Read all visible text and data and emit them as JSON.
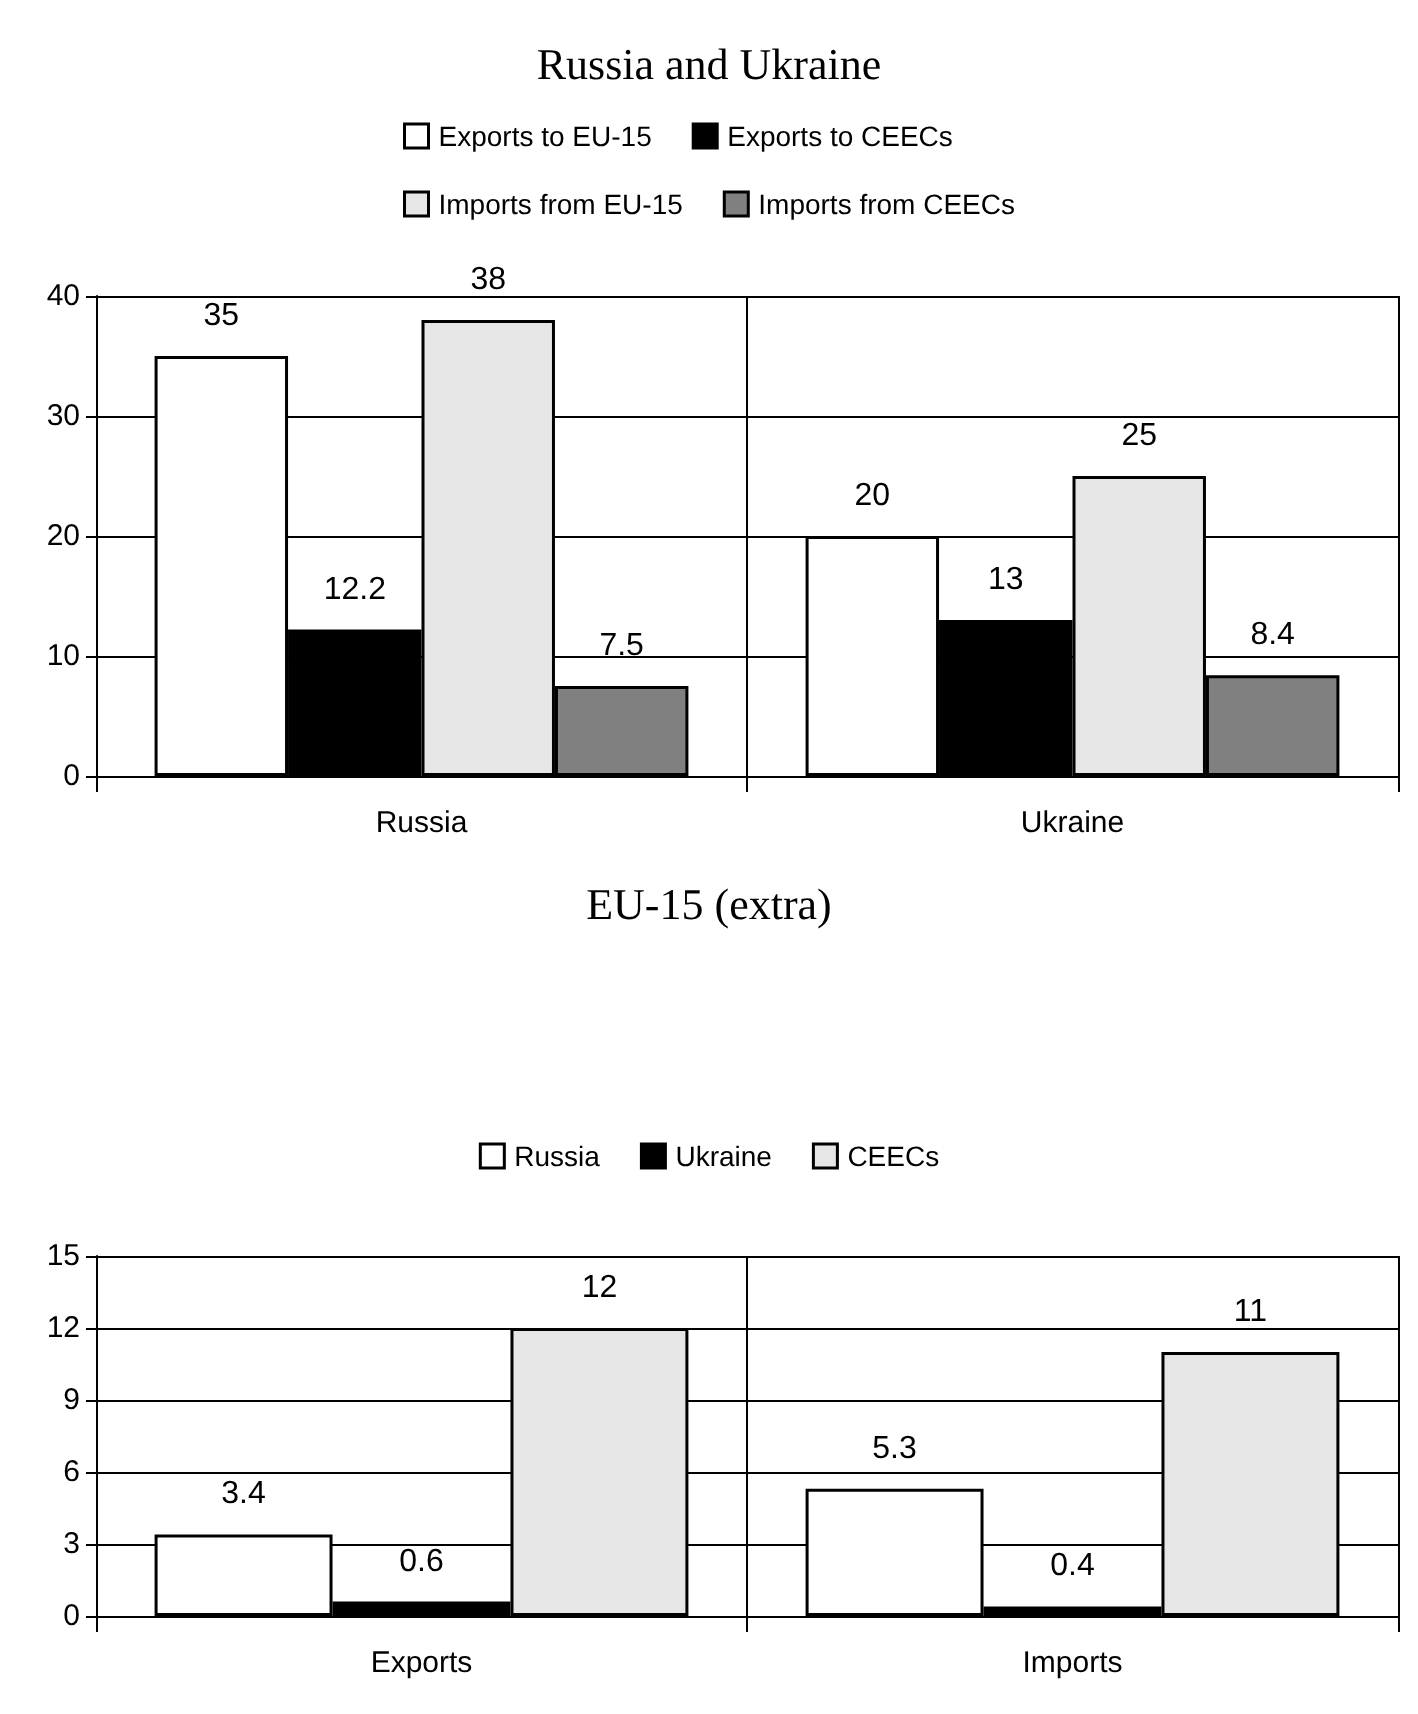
{
  "chart_data": [
    {
      "type": "bar",
      "title": "Russia and Ukraine",
      "categories": [
        "Russia",
        "Ukraine"
      ],
      "series": [
        {
          "name": "Exports to EU-15",
          "color": "#ffffff",
          "values": [
            35,
            20
          ]
        },
        {
          "name": "Exports to CEECs",
          "color": "#000000",
          "values": [
            12.2,
            13
          ]
        },
        {
          "name": "Imports from EU-15",
          "color": "#e6e6e6",
          "values": [
            38,
            25
          ]
        },
        {
          "name": "Imports from CEECs",
          "color": "#808080",
          "values": [
            7.5,
            8.4
          ]
        }
      ],
      "ylim": [
        0,
        40
      ],
      "yticks": [
        0,
        10,
        20,
        30,
        40
      ],
      "grid": true,
      "legend": "top",
      "data_labels": true
    },
    {
      "type": "bar",
      "title": "EU-15 (extra)",
      "categories": [
        "Exports",
        "Imports"
      ],
      "series": [
        {
          "name": "Russia",
          "color": "#ffffff",
          "values": [
            3.4,
            5.3
          ]
        },
        {
          "name": "Ukraine",
          "color": "#000000",
          "values": [
            0.6,
            0.4
          ]
        },
        {
          "name": "CEECs",
          "color": "#e6e6e6",
          "values": [
            12,
            11
          ]
        }
      ],
      "ylim": [
        0,
        15
      ],
      "yticks": [
        0,
        3,
        6,
        9,
        12,
        15
      ],
      "grid": true,
      "legend": "top",
      "data_labels": true
    }
  ]
}
